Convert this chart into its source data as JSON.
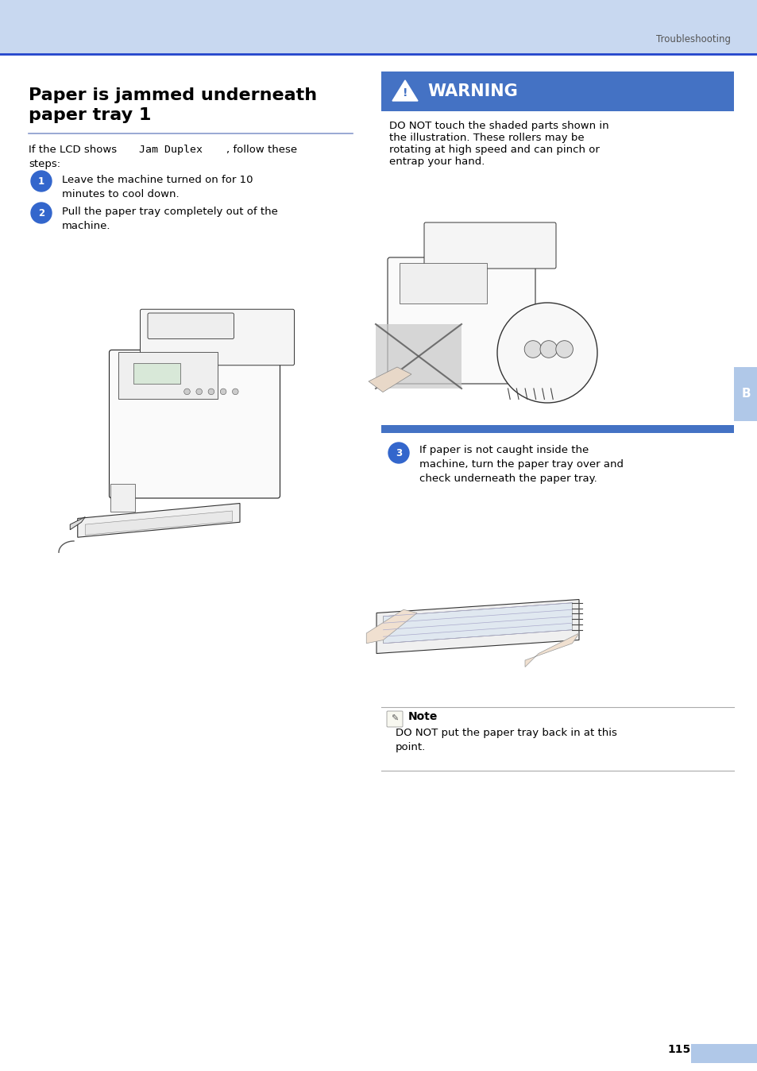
{
  "bg_color": "#ffffff",
  "header_bg": "#c8d8f0",
  "header_line_color": "#2244cc",
  "page_width": 9.54,
  "page_height": 13.48,
  "dpi": 100,
  "header_text": "Troubleshooting",
  "title_line1": "Paper is jammed underneath",
  "title_line2": "paper tray 1",
  "title_fontsize": 16,
  "title_fontweight": "bold",
  "divider_color": "#8899cc",
  "intro_normal1": "If the LCD shows ",
  "intro_mono": "Jam Duplex",
  "intro_normal2": ", follow these",
  "intro_line2": "steps:",
  "step1_text_line1": "Leave the machine turned on for 10",
  "step1_text_line2": "minutes to cool down.",
  "step2_text_line1": "Pull the paper tray completely out of the",
  "step2_text_line2": "machine.",
  "warning_bg": "#4472c4",
  "warning_text": "WARNING",
  "warning_fontsize": 15,
  "warning_desc_line1": "DO NOT touch the shaded parts shown in",
  "warning_desc_line2": "the illustration. These rollers may be",
  "warning_desc_line3": "rotating at high speed and can pinch or",
  "warning_desc_line4": "entrap your hand.",
  "step3_text_line1": "If paper is not caught inside the",
  "step3_text_line2": "machine, turn the paper tray over and",
  "step3_text_line3": "check underneath the paper tray.",
  "note_title": "Note",
  "note_line1": "DO NOT put the paper tray back in at this",
  "note_line2": "point.",
  "page_num": "115",
  "bullet_color": "#3366cc",
  "text_color": "#000000",
  "gray_text": "#555555",
  "b_tab_color": "#b0c8e8",
  "note_line_color": "#aaaaaa",
  "text_fontsize": 9.5,
  "step_fontsize": 9.5
}
